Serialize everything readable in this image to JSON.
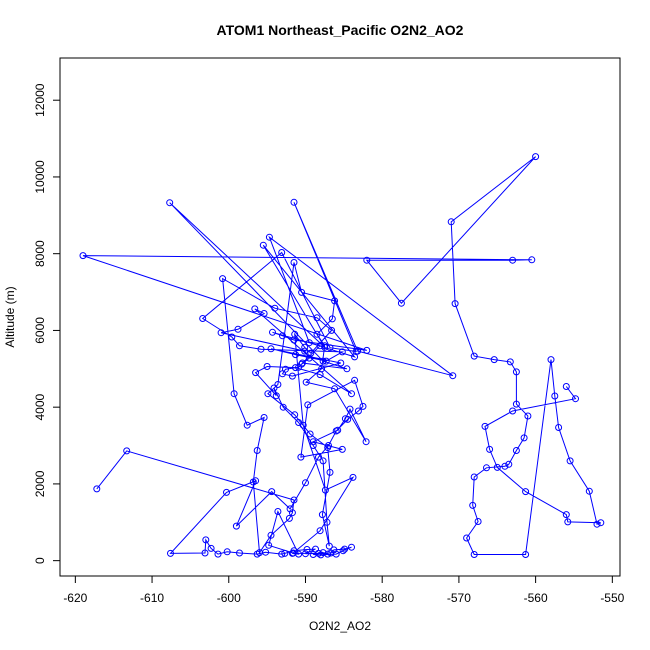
{
  "chart_data": {
    "type": "line",
    "title": "ATOM1 Northeast_Pacific O2N2_AO2",
    "xlabel": "O2N2_AO2",
    "ylabel": "Altitude (m)",
    "xlim": [
      -622,
      -549
    ],
    "ylim": [
      -400,
      13100
    ],
    "xticks": [
      -620,
      -610,
      -600,
      -590,
      -580,
      -570,
      -560,
      -550
    ],
    "yticks": [
      0,
      2000,
      4000,
      6000,
      8000,
      10000,
      12000
    ],
    "xtick_labels": [
      "-620",
      "-610",
      "-600",
      "-590",
      "-580",
      "-570",
      "-560",
      "-550"
    ],
    "ytick_labels": [
      "0",
      "2000",
      "4000",
      "6000",
      "8000",
      "10000",
      "12000"
    ],
    "grid": false,
    "series": [
      {
        "color": "#0000ff",
        "marker": "open-circle",
        "x": [
          -617.2,
          -613.3,
          -591.5,
          -591.7,
          -592.1,
          -594.5,
          -596.0,
          -596.8,
          -596.3,
          -595.4,
          -597.6,
          -599.3,
          -600.8,
          -594.0,
          -588.5,
          -586.6,
          -589.3,
          -590.1,
          -591.4,
          -590.3,
          -587.4,
          -583.8,
          -588.1,
          -591.6,
          -594.8,
          -593.6,
          -590.9,
          -591.7,
          -588.3,
          -587.1,
          -587.7,
          -589.0,
          -588.0,
          -586.0,
          -585.1,
          -584.0,
          -584.9,
          -586.3,
          -586.7,
          -590.0,
          -588.7,
          -589.8,
          -591.5,
          -592.7,
          -593.1,
          -595.2,
          -596.3,
          -598.6,
          -600.2,
          -601.4,
          -602.3,
          -603.0,
          -603.1,
          -607.6,
          -600.3,
          -596.5,
          -599.0,
          -594.4,
          -592.0,
          -590.0,
          -588.3,
          -587.0,
          -586.0,
          -584.5,
          -583.1,
          -582.5,
          -583.6,
          -589.7,
          -590.6,
          -585.2,
          -589.0,
          -585.8,
          -584.8,
          -584.2,
          -582.1,
          -586.2,
          -589.9,
          -587.9,
          -587.5,
          -588.5,
          -586.5,
          -586.2,
          -590.5,
          -591.5,
          -593.6,
          -594.9,
          -591.4,
          -589.4,
          -587.1,
          -586.8,
          -587.8,
          -586.9,
          -587.2,
          -587.7,
          -589.0,
          -590.9,
          -592.9,
          -594.1,
          -593.8,
          -596.5,
          -595.0,
          -591.3,
          -588.1,
          -584.0,
          -596.6,
          -595.4,
          -598.8,
          -601.0,
          -590.1,
          -589.5,
          -590.5,
          -590.9,
          -592.6,
          -593.0,
          -591.7,
          -585.4,
          -594.5,
          -591.3,
          -587.3,
          -585.2,
          -595.8,
          -598.6,
          -599.6,
          -603.4,
          -593.1,
          -586.8,
          -583.4,
          -591.5,
          -583.2,
          -570.8,
          -594.7,
          -589.5,
          -583.6,
          -595.5,
          -587.5,
          -607.7,
          -587.7,
          -584.6,
          -590.4,
          -588.1,
          -594.3,
          -593.0,
          -591.5,
          -582.0,
          -619.0,
          -560.5,
          -563.0,
          -582.0,
          -577.5,
          -560.0,
          -571.0,
          -570.5,
          -568.0,
          -565.4,
          -563.3,
          -562.5,
          -562.5,
          -561.0,
          -561.5,
          -562.5,
          -563.5,
          -564.0,
          -566.4,
          -568.0,
          -568.2,
          -567.5,
          -569.0,
          -568.0,
          -561.3,
          -558.0,
          -557.5,
          -557.0,
          -555.5,
          -553.0,
          -552.0,
          -551.5,
          -555.8,
          -556.0,
          -561.3,
          -565.0,
          -566.0,
          -566.6,
          -563.0,
          -554.8,
          -556.0
        ],
        "y": [
          1870,
          2860,
          1580,
          1250,
          1100,
          660,
          210,
          2050,
          2870,
          3730,
          3530,
          4350,
          7350,
          6580,
          6330,
          6000,
          5410,
          5560,
          5900,
          3530,
          1840,
          2170,
          780,
          200,
          400,
          1280,
          170,
          190,
          190,
          170,
          210,
          160,
          150,
          170,
          260,
          350,
          300,
          280,
          200,
          180,
          300,
          290,
          260,
          190,
          170,
          220,
          170,
          200,
          230,
          170,
          320,
          540,
          200,
          190,
          1780,
          2080,
          900,
          1800,
          1350,
          2030,
          2700,
          3000,
          3380,
          3680,
          3900,
          4020,
          4700,
          4060,
          2700,
          2900,
          3100,
          3400,
          3700,
          3950,
          3100,
          4480,
          4650,
          5000,
          5600,
          5900,
          6300,
          6770,
          6990,
          7770,
          4590,
          4350,
          3800,
          3300,
          2950,
          2300,
          1200,
          380,
          1000,
          2600,
          3000,
          3600,
          4000,
          4500,
          4300,
          4900,
          5060,
          5030,
          4850,
          4350,
          6560,
          6440,
          6030,
          5940,
          5460,
          5280,
          5120,
          5040,
          4990,
          4870,
          4810,
          5150,
          5520,
          5370,
          5200,
          5440,
          5510,
          5600,
          5830,
          6310,
          8030,
          5550,
          5450,
          9340,
          5460,
          4820,
          8430,
          5680,
          5310,
          8220,
          5560,
          9330,
          5200,
          5000,
          5150,
          5600,
          5950,
          5860,
          5750,
          5480,
          7950,
          7840,
          7830,
          7830,
          6710,
          10530,
          8830,
          6700,
          5330,
          5240,
          5180,
          4920,
          4080,
          3770,
          3200,
          2870,
          2510,
          2460,
          2420,
          2180,
          1440,
          1020,
          590,
          160,
          160,
          5240,
          4290,
          3470,
          2600,
          1810,
          950,
          990,
          1010,
          1200,
          1800,
          2430,
          2900,
          3500,
          3900,
          4220,
          4540
        ]
      }
    ]
  }
}
